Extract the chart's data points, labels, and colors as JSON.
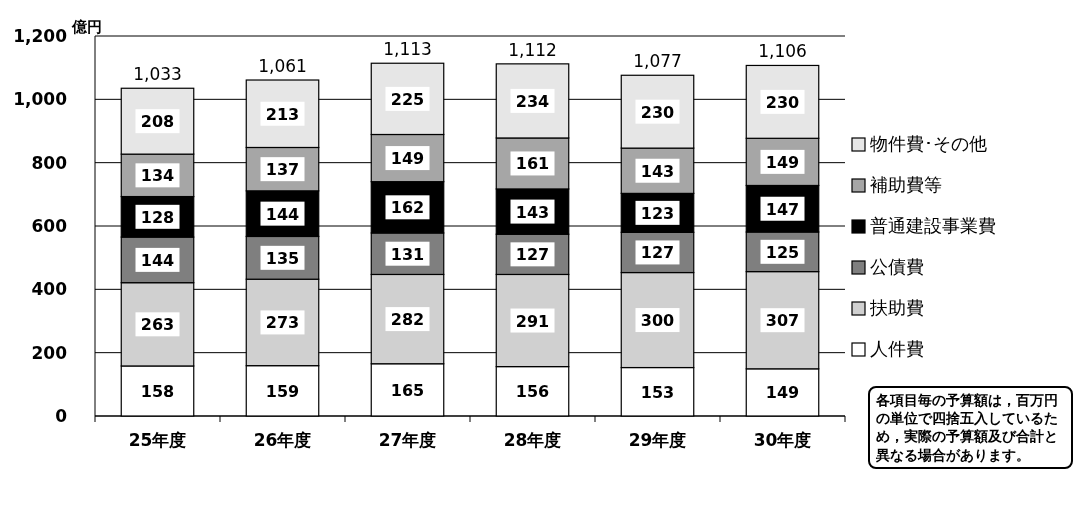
{
  "chart_data": {
    "type": "bar",
    "stacked": true,
    "ylabel": "億円",
    "categories": [
      "25年度",
      "26年度",
      "27年度",
      "28年度",
      "29年度",
      "30年度"
    ],
    "series": [
      {
        "name": "人件費",
        "color": "#ffffff",
        "values": [
          158,
          159,
          165,
          156,
          153,
          149
        ]
      },
      {
        "name": "扶助費",
        "color": "#d0d0d0",
        "values": [
          263,
          273,
          282,
          291,
          300,
          307
        ]
      },
      {
        "name": "公債費",
        "color": "#7f7f7f",
        "values": [
          144,
          135,
          131,
          127,
          127,
          125
        ]
      },
      {
        "name": "普通建設事業費",
        "color": "#000000",
        "values": [
          128,
          144,
          162,
          143,
          123,
          147
        ]
      },
      {
        "name": "補助費等",
        "color": "#a6a6a6",
        "values": [
          134,
          137,
          149,
          161,
          143,
          149
        ]
      },
      {
        "name": "物件費･その他",
        "color": "#e6e6e6",
        "values": [
          208,
          213,
          225,
          234,
          230,
          230
        ]
      }
    ],
    "totals": [
      "1,033",
      "1,061",
      "1,113",
      "1,112",
      "1,077",
      "1,106"
    ],
    "data_labels": true,
    "ylim": [
      0,
      1200
    ],
    "yticks": [
      {
        "value": 0,
        "label": "0"
      },
      {
        "value": 200,
        "label": "200"
      },
      {
        "value": 400,
        "label": "400"
      },
      {
        "value": 600,
        "label": "600"
      },
      {
        "value": 800,
        "label": "800"
      },
      {
        "value": 1000,
        "label": "1,000"
      },
      {
        "value": 1200,
        "label": "1,200"
      }
    ],
    "grid": "y",
    "legend": "right",
    "annotations": [
      "各項目毎の予算額は，百万円の単位で四捨五入しているため，実際の予算額及び合計と異なる場合があります。"
    ]
  }
}
